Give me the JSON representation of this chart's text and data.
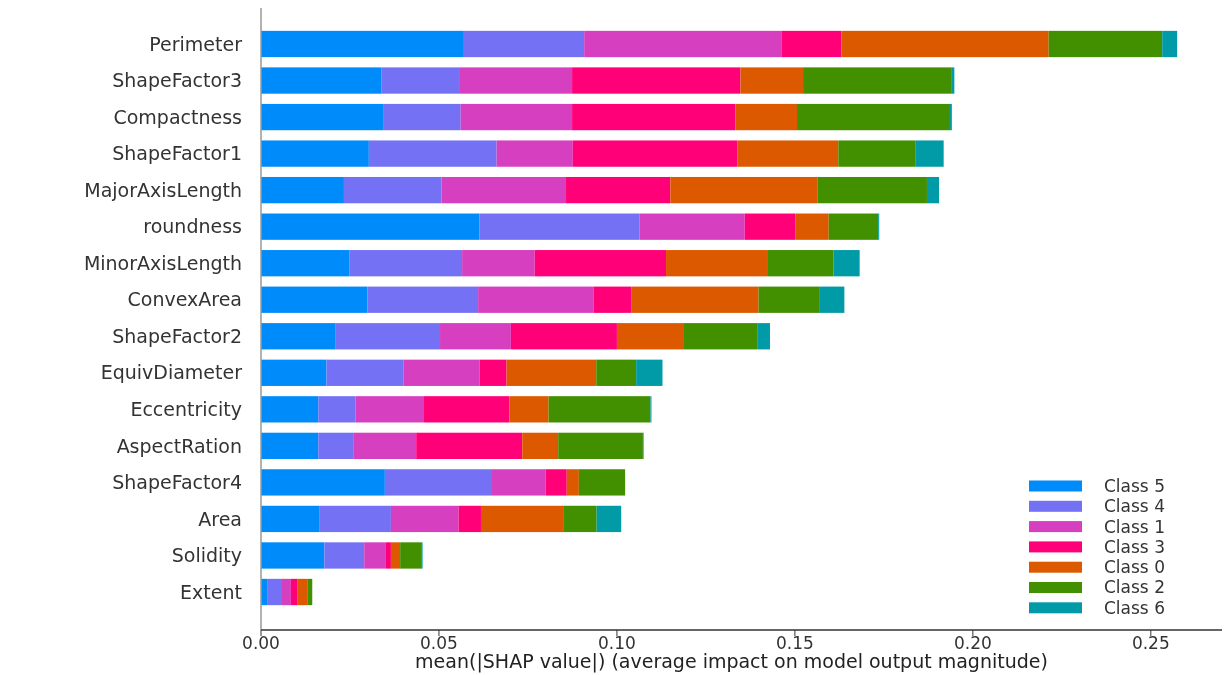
{
  "chart_data": {
    "type": "bar",
    "orientation": "horizontal",
    "stacked": true,
    "xlabel": "mean(|SHAP value|) (average impact on model output magnitude)",
    "categories": [
      "Perimeter",
      "ShapeFactor3",
      "Compactness",
      "ShapeFactor1",
      "MajorAxisLength",
      "roundness",
      "MinorAxisLength",
      "ConvexArea",
      "ShapeFactor2",
      "EquivDiameter",
      "Eccentricity",
      "AspectRation",
      "ShapeFactor4",
      "Area",
      "Solidity",
      "Extent"
    ],
    "series": [
      {
        "name": "Class 5",
        "color": "#008bfb",
        "values": [
          0.057,
          0.0339,
          0.0343,
          0.0303,
          0.0233,
          0.0614,
          0.0249,
          0.0299,
          0.021,
          0.0184,
          0.0161,
          0.0161,
          0.0348,
          0.0165,
          0.0178,
          0.0019
        ]
      },
      {
        "name": "Class 4",
        "color": "#7571f4",
        "values": [
          0.0338,
          0.022,
          0.0218,
          0.0359,
          0.0274,
          0.0449,
          0.0316,
          0.0311,
          0.0293,
          0.0217,
          0.0105,
          0.0098,
          0.0301,
          0.02,
          0.0112,
          0.004
        ]
      },
      {
        "name": "Class 1",
        "color": "#d63fc0",
        "values": [
          0.0554,
          0.0315,
          0.0313,
          0.0214,
          0.035,
          0.0296,
          0.0204,
          0.0324,
          0.0199,
          0.0213,
          0.0192,
          0.0177,
          0.0151,
          0.019,
          0.0061,
          0.0025
        ]
      },
      {
        "name": "Class 3",
        "color": "#ff0078",
        "values": [
          0.0169,
          0.0473,
          0.0459,
          0.0462,
          0.0293,
          0.0143,
          0.0369,
          0.0106,
          0.0298,
          0.0076,
          0.024,
          0.0298,
          0.0059,
          0.0063,
          0.0014,
          0.0019
        ]
      },
      {
        "name": "Class 0",
        "color": "#dc5900",
        "values": [
          0.0582,
          0.0176,
          0.0173,
          0.0284,
          0.0413,
          0.0093,
          0.0284,
          0.0358,
          0.0186,
          0.0252,
          0.011,
          0.0101,
          0.0034,
          0.0231,
          0.0026,
          0.0027
        ]
      },
      {
        "name": "Class 2",
        "color": "#428f00",
        "values": [
          0.0319,
          0.0418,
          0.0427,
          0.0216,
          0.0308,
          0.0139,
          0.0186,
          0.017,
          0.0208,
          0.0112,
          0.0286,
          0.0238,
          0.013,
          0.0094,
          0.0061,
          0.0014
        ]
      },
      {
        "name": "Class 6",
        "color": "#009ba6",
        "values": [
          0.0042,
          0.0007,
          0.0008,
          0.008,
          0.0034,
          0.0003,
          0.0074,
          0.0071,
          0.0036,
          0.0074,
          0.0003,
          0.0002,
          0.0,
          0.0069,
          0.0002,
          0.0
        ]
      }
    ],
    "xlim": [
      0,
      0.27
    ],
    "xticks": [
      {
        "value": 0,
        "label": "0.00"
      },
      {
        "value": 0.05,
        "label": "0.05"
      },
      {
        "value": 0.1,
        "label": "0.10"
      },
      {
        "value": 0.15,
        "label": "0.15"
      },
      {
        "value": 0.2,
        "label": "0.20"
      },
      {
        "value": 0.25,
        "label": "0.25"
      }
    ],
    "legend": "bottom right"
  }
}
